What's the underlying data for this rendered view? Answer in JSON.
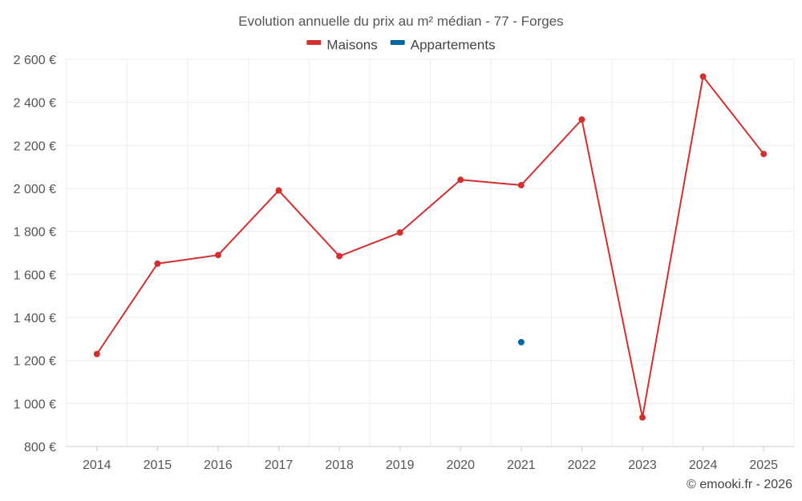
{
  "chart_data": {
    "type": "line",
    "title": "Evolution annuelle du prix au m² médian - 77 - Forges",
    "categories": [
      "2014",
      "2015",
      "2016",
      "2017",
      "2018",
      "2019",
      "2020",
      "2021",
      "2022",
      "2023",
      "2024",
      "2025"
    ],
    "series": [
      {
        "name": "Maisons",
        "color": "#d32f2f",
        "values": [
          1230,
          1650,
          1690,
          1990,
          1685,
          1795,
          2040,
          2015,
          2320,
          935,
          2520,
          2160
        ]
      },
      {
        "name": "Appartements",
        "color": "#0066a1",
        "values": [
          null,
          null,
          null,
          null,
          null,
          null,
          null,
          1285,
          null,
          null,
          null,
          null
        ]
      }
    ],
    "ylim": [
      800,
      2600
    ],
    "yticks": [
      800,
      1000,
      1200,
      1400,
      1600,
      1800,
      2000,
      2200,
      2400,
      2600
    ],
    "ytick_labels": [
      "800 €",
      "1 000 €",
      "1 200 €",
      "1 400 €",
      "1 600 €",
      "1 800 €",
      "2 000 €",
      "2 200 €",
      "2 400 €",
      "2 600 €"
    ],
    "grid": true,
    "legend_position": "top-center"
  },
  "credit": "© emooki.fr - 2026"
}
